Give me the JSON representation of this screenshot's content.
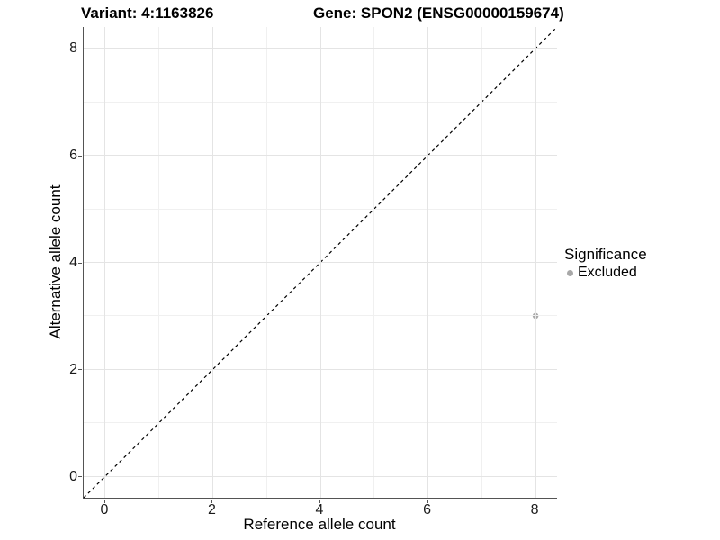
{
  "chart_data": {
    "type": "scatter",
    "title_left": "Variant: 4:1163826",
    "title_right": "Gene: SPON2 (ENSG00000159674)",
    "xlabel": "Reference allele count",
    "ylabel": "Alternative allele count",
    "xlim": [
      -0.4,
      8.4
    ],
    "ylim": [
      -0.4,
      8.4
    ],
    "x_ticks": [
      0,
      2,
      4,
      6,
      8
    ],
    "y_ticks": [
      0,
      2,
      4,
      6,
      8
    ],
    "x_minor_ticks": [
      1,
      3,
      5,
      7
    ],
    "y_minor_ticks": [
      1,
      3,
      5,
      7
    ],
    "grid": "major-and-minor",
    "reference_line": {
      "equation": "y = x",
      "style": "dashed",
      "color": "#000000"
    },
    "series": [
      {
        "name": "Excluded",
        "color": "#a8a8a8",
        "points": [
          {
            "x": 8,
            "y": 3
          }
        ]
      }
    ],
    "legend": {
      "position": "right",
      "title": "Significance",
      "entries": [
        {
          "label": "Excluded",
          "color": "#a8a8a8"
        }
      ]
    },
    "colors": {
      "axis_line": "#545454",
      "grid_major": "#e4e4e4",
      "grid_minor": "#f0f0f0",
      "tick_text": "#1a1a1a",
      "background": "#ffffff"
    }
  }
}
